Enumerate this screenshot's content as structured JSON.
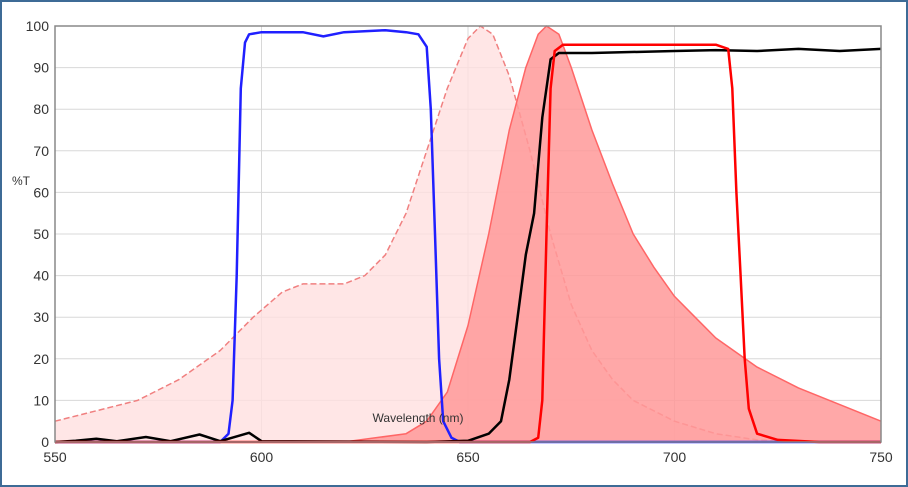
{
  "chart_data": {
    "type": "area",
    "title": "",
    "xlabel": "Wavelength (nm)",
    "ylabel": "%T",
    "xlim": [
      550,
      750
    ],
    "ylim": [
      0,
      100
    ],
    "x_ticks": [
      550,
      600,
      650,
      700,
      750
    ],
    "y_ticks": [
      0,
      10,
      20,
      30,
      40,
      50,
      60,
      70,
      80,
      90,
      100
    ],
    "grid": true,
    "legend": "none",
    "series": [
      {
        "color": "#f08080",
        "fill": "#ffe0e0",
        "style": "dashed-filled",
        "points": [
          [
            550,
            5
          ],
          [
            560,
            7.5
          ],
          [
            570,
            10
          ],
          [
            580,
            15
          ],
          [
            590,
            22
          ],
          [
            598,
            30
          ],
          [
            605,
            36
          ],
          [
            610,
            38
          ],
          [
            615,
            38
          ],
          [
            620,
            38
          ],
          [
            625,
            40
          ],
          [
            630,
            45
          ],
          [
            635,
            55
          ],
          [
            640,
            70
          ],
          [
            645,
            85
          ],
          [
            650,
            97
          ],
          [
            653,
            100
          ],
          [
            656,
            98
          ],
          [
            660,
            88
          ],
          [
            665,
            70
          ],
          [
            670,
            50
          ],
          [
            675,
            33
          ],
          [
            680,
            22
          ],
          [
            685,
            15
          ],
          [
            690,
            10
          ],
          [
            700,
            5
          ],
          [
            710,
            2
          ],
          [
            720,
            0.5
          ],
          [
            730,
            0
          ]
        ]
      },
      {
        "color": "#ff6666",
        "fill": "#ff9999",
        "style": "filled",
        "points": [
          [
            620,
            0
          ],
          [
            635,
            2
          ],
          [
            640,
            5
          ],
          [
            645,
            12
          ],
          [
            650,
            28
          ],
          [
            655,
            50
          ],
          [
            660,
            75
          ],
          [
            664,
            90
          ],
          [
            667,
            98
          ],
          [
            669,
            100
          ],
          [
            672,
            98
          ],
          [
            675,
            90
          ],
          [
            680,
            75
          ],
          [
            685,
            62
          ],
          [
            690,
            50
          ],
          [
            695,
            42
          ],
          [
            700,
            35
          ],
          [
            705,
            30
          ],
          [
            710,
            25
          ],
          [
            720,
            18
          ],
          [
            730,
            13
          ],
          [
            740,
            9
          ],
          [
            750,
            5
          ]
        ]
      },
      {
        "color": "#2020ff",
        "style": "line",
        "points": [
          [
            550,
            0
          ],
          [
            590,
            0
          ],
          [
            592,
            2
          ],
          [
            593,
            10
          ],
          [
            594,
            40
          ],
          [
            595,
            85
          ],
          [
            596,
            96
          ],
          [
            597,
            98
          ],
          [
            600,
            98.5
          ],
          [
            610,
            98.5
          ],
          [
            615,
            97.5
          ],
          [
            620,
            98.5
          ],
          [
            630,
            99
          ],
          [
            635,
            98.5
          ],
          [
            638,
            98
          ],
          [
            640,
            95
          ],
          [
            641,
            80
          ],
          [
            642,
            50
          ],
          [
            643,
            20
          ],
          [
            644,
            5
          ],
          [
            646,
            1
          ],
          [
            648,
            0
          ],
          [
            750,
            0
          ]
        ]
      },
      {
        "color": "#000000",
        "style": "line",
        "points": [
          [
            550,
            0
          ],
          [
            555,
            0.3
          ],
          [
            560,
            0.8
          ],
          [
            565,
            0.2
          ],
          [
            572,
            1.2
          ],
          [
            578,
            0.2
          ],
          [
            585,
            1.8
          ],
          [
            590,
            0.2
          ],
          [
            597,
            2.2
          ],
          [
            600,
            0.2
          ],
          [
            640,
            0
          ],
          [
            650,
            0.3
          ],
          [
            655,
            2
          ],
          [
            658,
            5
          ],
          [
            660,
            15
          ],
          [
            662,
            30
          ],
          [
            664,
            45
          ],
          [
            666,
            55
          ],
          [
            668,
            78
          ],
          [
            670,
            92
          ],
          [
            672,
            93.5
          ],
          [
            680,
            93.5
          ],
          [
            700,
            94
          ],
          [
            710,
            94.2
          ],
          [
            720,
            94
          ],
          [
            730,
            94.5
          ],
          [
            740,
            94
          ],
          [
            750,
            94.5
          ]
        ]
      },
      {
        "color": "#ff0000",
        "style": "line",
        "points": [
          [
            550,
            0
          ],
          [
            665,
            0
          ],
          [
            667,
            1
          ],
          [
            668,
            10
          ],
          [
            669,
            50
          ],
          [
            670,
            85
          ],
          [
            671,
            94
          ],
          [
            673,
            95.5
          ],
          [
            690,
            95.5
          ],
          [
            700,
            95.5
          ],
          [
            710,
            95.5
          ],
          [
            713,
            94.5
          ],
          [
            714,
            85
          ],
          [
            715,
            60
          ],
          [
            716,
            40
          ],
          [
            717,
            20
          ],
          [
            718,
            8
          ],
          [
            720,
            2
          ],
          [
            725,
            0.5
          ],
          [
            735,
            0
          ],
          [
            750,
            0
          ]
        ]
      }
    ]
  }
}
